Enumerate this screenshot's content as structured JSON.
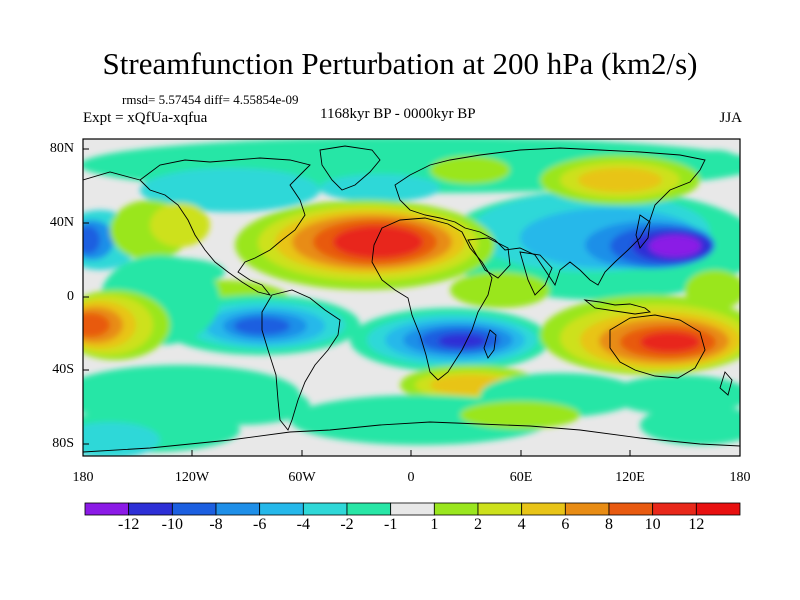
{
  "title": "Streamfunction Perturbation at 200 hPa (km2/s)",
  "stats": "rmsd= 5.57454  diff= 4.55854e-09",
  "experiment": "Expt = xQfUa-xqfua",
  "period": "1168kyr BP - 0000kyr BP",
  "season": "JJA",
  "lat_labels": [
    "80N",
    "40N",
    "0",
    "40S",
    "80S"
  ],
  "lon_labels": [
    "180",
    "120W",
    "60W",
    "0",
    "60E",
    "120E",
    "180"
  ],
  "colorbar": {
    "labels": [
      "-12",
      "-10",
      "-8",
      "-6",
      "-4",
      "-2",
      "-1",
      "1",
      "2",
      "4",
      "6",
      "8",
      "10",
      "12"
    ],
    "colors": [
      "#8b1ae6",
      "#2d2fd6",
      "#1c5fe0",
      "#1f8fe8",
      "#25b8ea",
      "#2fd8d8",
      "#28e6a6",
      "#e8e8e8",
      "#9ae61e",
      "#cde11c",
      "#e8c418",
      "#e88c14",
      "#e85a10",
      "#e8281a",
      "#e81010"
    ]
  },
  "field_colors": {
    "background": "#e8e8e8",
    "neg_1": "#28e6a6",
    "neg_2": "#2fd8d8",
    "neg_4": "#25b8ea",
    "neg_6": "#1f8fe8",
    "neg_8": "#1c5fe0",
    "neg_10": "#2d2fd6",
    "neg_12": "#8b1ae6",
    "pos_1": "#9ae61e",
    "pos_2": "#cde11c",
    "pos_4": "#e8c418",
    "pos_6": "#e88c14",
    "pos_8": "#e85a10",
    "pos_10": "#e8281a"
  }
}
